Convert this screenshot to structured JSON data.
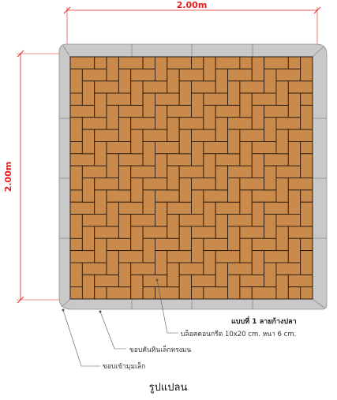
{
  "dimensions": {
    "width_label": "2.00m",
    "height_label": "2.00m"
  },
  "colors": {
    "paver_fill": "#c98a4c",
    "paver_stroke": "#2b1a0c",
    "border_fill": "#c9c9c9",
    "border_stroke": "#8a8a8a",
    "dimension_red": "#e02020"
  },
  "annotations": {
    "pattern_title": "แบบที่ 1 ลายก้างปลา",
    "block_spec": "บล็อคคอนกรีต 10x20 cm. หนา 6 cm.",
    "curb_edge": "ขอบคันหินเล็กทรงมน",
    "corner_edge": "ขอบเข้ามุมเล็ก"
  },
  "caption": "รูปแปลน"
}
